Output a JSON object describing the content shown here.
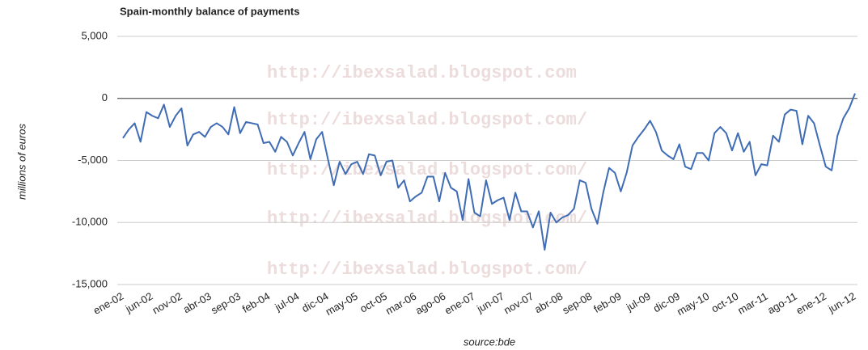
{
  "chart_data": {
    "type": "line",
    "title": "Spain-monthly balance of payments",
    "y_label": "millions of euros",
    "x_label": "source:bde",
    "annotations": [
      "http://ibexsalad.blogspot.com",
      "http://ibexsalad.blogspot.com/",
      "http://ibexsalad.blogspot.com/",
      "http://ibexsalad.blogspot.com/",
      "http://ibexsalad.blogspot.com/"
    ],
    "categories": [
      "ene-02",
      null,
      null,
      null,
      null,
      "jun-02",
      null,
      null,
      null,
      null,
      "nov-02",
      null,
      null,
      null,
      null,
      "abr-03",
      null,
      null,
      null,
      null,
      "sep-03",
      null,
      null,
      null,
      null,
      "feb-04",
      null,
      null,
      null,
      null,
      "jul-04",
      null,
      null,
      null,
      null,
      "dic-04",
      null,
      null,
      null,
      null,
      "may-05",
      null,
      null,
      null,
      null,
      "oct-05",
      null,
      null,
      null,
      null,
      "mar-06",
      null,
      null,
      null,
      null,
      "ago-06",
      null,
      null,
      null,
      null,
      "ene-07",
      null,
      null,
      null,
      null,
      "jun-07",
      null,
      null,
      null,
      null,
      "nov-07",
      null,
      null,
      null,
      null,
      "abr-08",
      null,
      null,
      null,
      null,
      "sep-08",
      null,
      null,
      null,
      null,
      "feb-09",
      null,
      null,
      null,
      null,
      "jul-09",
      null,
      null,
      null,
      null,
      "dic-09",
      null,
      null,
      null,
      null,
      "may-10",
      null,
      null,
      null,
      null,
      "oct-10",
      null,
      null,
      null,
      null,
      "mar-11",
      null,
      null,
      null,
      null,
      "ago-11",
      null,
      null,
      null,
      null,
      "ene-12",
      null,
      null,
      null,
      null,
      "jun-12"
    ],
    "series": [
      {
        "name": "balance of payments",
        "color": "#3f6cb4",
        "values": [
          -3200,
          -2500,
          -2000,
          -3500,
          -1100,
          -1400,
          -1600,
          -500,
          -2300,
          -1400,
          -800,
          -3800,
          -2900,
          -2700,
          -3100,
          -2300,
          -2000,
          -2300,
          -2900,
          -700,
          -2800,
          -1900,
          -2000,
          -2100,
          -3600,
          -3500,
          -4300,
          -3100,
          -3500,
          -4600,
          -3600,
          -2700,
          -4900,
          -3300,
          -2700,
          -4900,
          -7000,
          -5100,
          -6100,
          -5300,
          -5100,
          -6100,
          -4500,
          -4600,
          -6200,
          -5100,
          -5000,
          -7200,
          -6600,
          -8300,
          -7900,
          -7600,
          -6300,
          -6300,
          -8300,
          -6000,
          -7200,
          -7500,
          -9800,
          -6500,
          -9200,
          -9500,
          -6600,
          -8500,
          -8200,
          -8000,
          -9800,
          -7600,
          -9100,
          -9100,
          -10400,
          -9100,
          -12200,
          -9200,
          -10000,
          -9600,
          -9400,
          -8900,
          -6600,
          -6800,
          -8900,
          -10100,
          -7600,
          -5600,
          -6000,
          -7500,
          -6000,
          -3800,
          -3100,
          -2500,
          -1800,
          -2700,
          -4200,
          -4600,
          -4900,
          -3700,
          -5500,
          -5700,
          -4400,
          -4400,
          -5000,
          -2800,
          -2300,
          -2800,
          -4200,
          -2800,
          -4300,
          -3500,
          -6200,
          -5300,
          -5400,
          -3000,
          -3500,
          -1300,
          -900,
          -1000,
          -3700,
          -1400,
          -2000,
          -3800,
          -5500,
          -5800,
          -3000,
          -1600,
          -800,
          400
        ]
      }
    ],
    "ylim": [
      -15000,
      5000
    ],
    "yticks": [
      {
        "value": 5000,
        "label": "5,000"
      },
      0,
      {
        "value": -5000,
        "label": "-5,000"
      },
      {
        "value": -10000,
        "label": "-10,000"
      },
      {
        "value": -15000,
        "label": "-15,000"
      }
    ],
    "grid": true
  }
}
